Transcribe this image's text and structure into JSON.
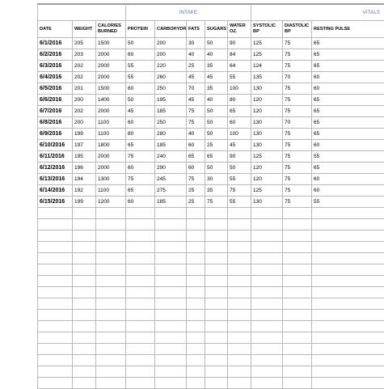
{
  "groups": {
    "intake": "INTAKE",
    "vitals": "VITALS"
  },
  "columns": [
    "DATE",
    "WEIGHT",
    "CALORIES BURNED",
    "PROTEIN",
    "CARBOHYDRATES",
    "FATS",
    "SUGARS",
    "WATER OZ.",
    "SYSTOLIC BP",
    "DIASTOLIC BP",
    "RESTING PULSE"
  ],
  "rows": [
    [
      "6/1/2016",
      "205",
      "1500",
      "50",
      "200",
      "30",
      "50",
      "90",
      "125",
      "75",
      "65"
    ],
    [
      "6/2/2016",
      "203",
      "2000",
      "60",
      "200",
      "40",
      "40",
      "84",
      "125",
      "75",
      "65"
    ],
    [
      "6/3/2016",
      "202",
      "2000",
      "55",
      "220",
      "25",
      "35",
      "64",
      "124",
      "75",
      "65"
    ],
    [
      "6/4/2016",
      "202",
      "2000",
      "55",
      "260",
      "45",
      "45",
      "55",
      "135",
      "70",
      "60"
    ],
    [
      "6/5/2016",
      "201",
      "1500",
      "60",
      "250",
      "70",
      "35",
      "100",
      "130",
      "75",
      "60"
    ],
    [
      "6/6/2016",
      "200",
      "1400",
      "50",
      "195",
      "45",
      "40",
      "80",
      "120",
      "75",
      "65"
    ],
    [
      "6/7/2016",
      "202",
      "2000",
      "45",
      "185",
      "75",
      "50",
      "65",
      "120",
      "75",
      "65"
    ],
    [
      "6/8/2016",
      "200",
      "1100",
      "60",
      "250",
      "75",
      "50",
      "60",
      "130",
      "70",
      "65"
    ],
    [
      "6/9/2016",
      "199",
      "1100",
      "80",
      "280",
      "40",
      "50",
      "100",
      "130",
      "75",
      "65"
    ],
    [
      "6/10/2016",
      "197",
      "1800",
      "65",
      "185",
      "60",
      "25",
      "45",
      "130",
      "75",
      "60"
    ],
    [
      "6/11/2016",
      "195",
      "2000",
      "75",
      "240",
      "65",
      "65",
      "90",
      "125",
      "75",
      "55"
    ],
    [
      "6/12/2016",
      "196",
      "2000",
      "60",
      "290",
      "60",
      "50",
      "50",
      "120",
      "75",
      "65"
    ],
    [
      "6/13/2016",
      "194",
      "1300",
      "75",
      "245",
      "75",
      "30",
      "55",
      "120",
      "75",
      "60"
    ],
    [
      "6/14/2016",
      "192",
      "1100",
      "65",
      "275",
      "25",
      "35",
      "75",
      "125",
      "75",
      "60"
    ],
    [
      "6/15/2016",
      "199",
      "1200",
      "60",
      "185",
      "25",
      "75",
      "55",
      "130",
      "75",
      "55"
    ]
  ],
  "colors": {
    "group_label": "#5b6fa8",
    "grid": "#b8b8b8",
    "top_rule": "#9e9e9e"
  }
}
